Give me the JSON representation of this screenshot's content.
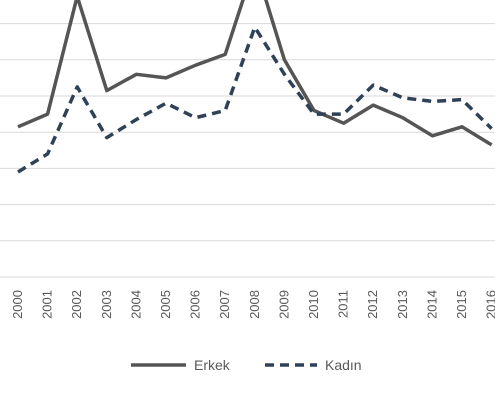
{
  "chart_data": {
    "type": "line",
    "x": [
      "2000",
      "2001",
      "2002",
      "2003",
      "2004",
      "2005",
      "2006",
      "2007",
      "2008",
      "2009",
      "2010",
      "2011",
      "2012",
      "2013",
      "2014",
      "2015",
      "2016"
    ],
    "series": [
      {
        "name": "Erkek",
        "color": "#555555",
        "style": "solid",
        "values": [
          8.3,
          9.0,
          15.5,
          10.3,
          11.2,
          11.0,
          11.7,
          12.3,
          17.3,
          12.0,
          9.2,
          8.5,
          9.5,
          8.8,
          7.8,
          8.3,
          7.3
        ]
      },
      {
        "name": "Kadın",
        "color": "#2f4157",
        "style": "dashed",
        "values": [
          5.8,
          6.8,
          10.5,
          7.7,
          8.7,
          9.6,
          8.8,
          9.2,
          13.8,
          11.2,
          9.0,
          9.0,
          10.6,
          9.9,
          9.7,
          9.8,
          8.2
        ]
      }
    ],
    "ylim": [
      0,
      20
    ],
    "grid": true,
    "legend_position": "bottom"
  }
}
